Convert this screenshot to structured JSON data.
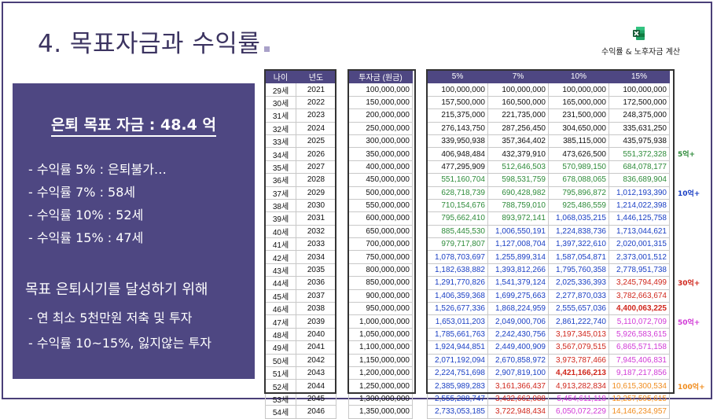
{
  "title": "4. 목표자금과 수익률",
  "subtitle": "수익률 & 노후자금 계산",
  "app_icon": "excel-icon",
  "panel": {
    "goal": "은퇴 목표 자금 : 48.4 억",
    "rates": [
      "- 수익률 5% : 은퇴불가…",
      "- 수익률 7% : 58세",
      "- 수익률 10% : 52세",
      "- 수익률 15% : 47세"
    ],
    "heading": "목표 은퇴시기를 달성하기 위해",
    "items": [
      "- 연 최소 5천만원 저축 및 투자",
      "- 수익률 10~15%, 잃지않는 투자"
    ]
  },
  "table": {
    "headers": [
      "나이",
      "년도",
      "투자금 (원금)",
      "5%",
      "7%",
      "10%",
      "15%"
    ],
    "rows": [
      [
        "29세",
        "2021",
        "100,000,000",
        "100,000,000",
        "100,000,000",
        "100,000,000",
        "100,000,000"
      ],
      [
        "30세",
        "2022",
        "150,000,000",
        "157,500,000",
        "160,500,000",
        "165,000,000",
        "172,500,000"
      ],
      [
        "31세",
        "2023",
        "200,000,000",
        "215,375,000",
        "221,735,000",
        "231,500,000",
        "248,375,000"
      ],
      [
        "32세",
        "2024",
        "250,000,000",
        "276,143,750",
        "287,256,450",
        "304,650,000",
        "335,631,250"
      ],
      [
        "33세",
        "2025",
        "300,000,000",
        "339,950,938",
        "357,364,402",
        "385,115,000",
        "435,975,938"
      ],
      [
        "34세",
        "2026",
        "350,000,000",
        "406,948,484",
        "432,379,910",
        "473,626,500",
        "551,372,328"
      ],
      [
        "35세",
        "2027",
        "400,000,000",
        "477,295,909",
        "512,646,503",
        "570,989,150",
        "684,078,177"
      ],
      [
        "36세",
        "2028",
        "450,000,000",
        "551,160,704",
        "598,531,759",
        "678,088,065",
        "836,689,904"
      ],
      [
        "37세",
        "2029",
        "500,000,000",
        "628,718,739",
        "690,428,982",
        "795,896,872",
        "1,012,193,390"
      ],
      [
        "38세",
        "2030",
        "550,000,000",
        "710,154,676",
        "788,759,010",
        "925,486,559",
        "1,214,022,398"
      ],
      [
        "39세",
        "2031",
        "600,000,000",
        "795,662,410",
        "893,972,141",
        "1,068,035,215",
        "1,446,125,758"
      ],
      [
        "40세",
        "2032",
        "650,000,000",
        "885,445,530",
        "1,006,550,191",
        "1,224,838,736",
        "1,713,044,621"
      ],
      [
        "41세",
        "2033",
        "700,000,000",
        "979,717,807",
        "1,127,008,704",
        "1,397,322,610",
        "2,020,001,315"
      ],
      [
        "42세",
        "2034",
        "750,000,000",
        "1,078,703,697",
        "1,255,899,314",
        "1,587,054,871",
        "2,373,001,512"
      ],
      [
        "43세",
        "2035",
        "800,000,000",
        "1,182,638,882",
        "1,393,812,266",
        "1,795,760,358",
        "2,778,951,738"
      ],
      [
        "44세",
        "2036",
        "850,000,000",
        "1,291,770,826",
        "1,541,379,124",
        "2,025,336,393",
        "3,245,794,499"
      ],
      [
        "45세",
        "2037",
        "900,000,000",
        "1,406,359,368",
        "1,699,275,663",
        "2,277,870,033",
        "3,782,663,674"
      ],
      [
        "46세",
        "2038",
        "950,000,000",
        "1,526,677,336",
        "1,868,224,959",
        "2,555,657,036",
        "4,400,063,225"
      ],
      [
        "47세",
        "2039",
        "1,000,000,000",
        "1,653,011,203",
        "2,049,000,706",
        "2,861,222,740",
        "5,110,072,709"
      ],
      [
        "48세",
        "2040",
        "1,050,000,000",
        "1,785,661,763",
        "2,242,430,756",
        "3,197,345,013",
        "5,926,583,615"
      ],
      [
        "49세",
        "2041",
        "1,100,000,000",
        "1,924,944,851",
        "2,449,400,909",
        "3,567,079,515",
        "6,865,571,158"
      ],
      [
        "50세",
        "2042",
        "1,150,000,000",
        "2,071,192,094",
        "2,670,858,972",
        "3,973,787,466",
        "7,945,406,831"
      ],
      [
        "51세",
        "2043",
        "1,200,000,000",
        "2,224,751,698",
        "2,907,819,100",
        "4,421,166,213",
        "9,187,217,856"
      ],
      [
        "52세",
        "2044",
        "1,250,000,000",
        "2,385,989,283",
        "3,161,366,437",
        "4,913,282,834",
        "10,615,300,534"
      ],
      [
        "53세",
        "2045",
        "1,300,000,000",
        "2,555,288,747",
        "3,432,662,088",
        "5,454,611,118",
        "12,257,595,615"
      ],
      [
        "54세",
        "2046",
        "1,350,000,000",
        "2,733,053,185",
        "3,722,948,434",
        "6,050,072,229",
        "14,146,234,957"
      ]
    ],
    "bold_cells": [
      [
        17,
        6
      ],
      [
        22,
        5
      ]
    ]
  },
  "milestones": [
    {
      "label": "5억+",
      "color": "#2e8b3a",
      "row": 5
    },
    {
      "label": "10억+",
      "color": "#1a3fc4",
      "row": 8
    },
    {
      "label": "30억+",
      "color": "#d0271d",
      "row": 15
    },
    {
      "label": "50억+",
      "color": "#d13ad6",
      "row": 18
    },
    {
      "label": "100억+",
      "color": "#f08c1e",
      "row": 23
    }
  ],
  "colors": {
    "black": "#111111",
    "green": "#2e8b3a",
    "blue": "#1a3fc4",
    "red": "#d0271d",
    "magenta": "#d13ad6",
    "orange": "#f08c1e",
    "panel": "#4e4782"
  }
}
